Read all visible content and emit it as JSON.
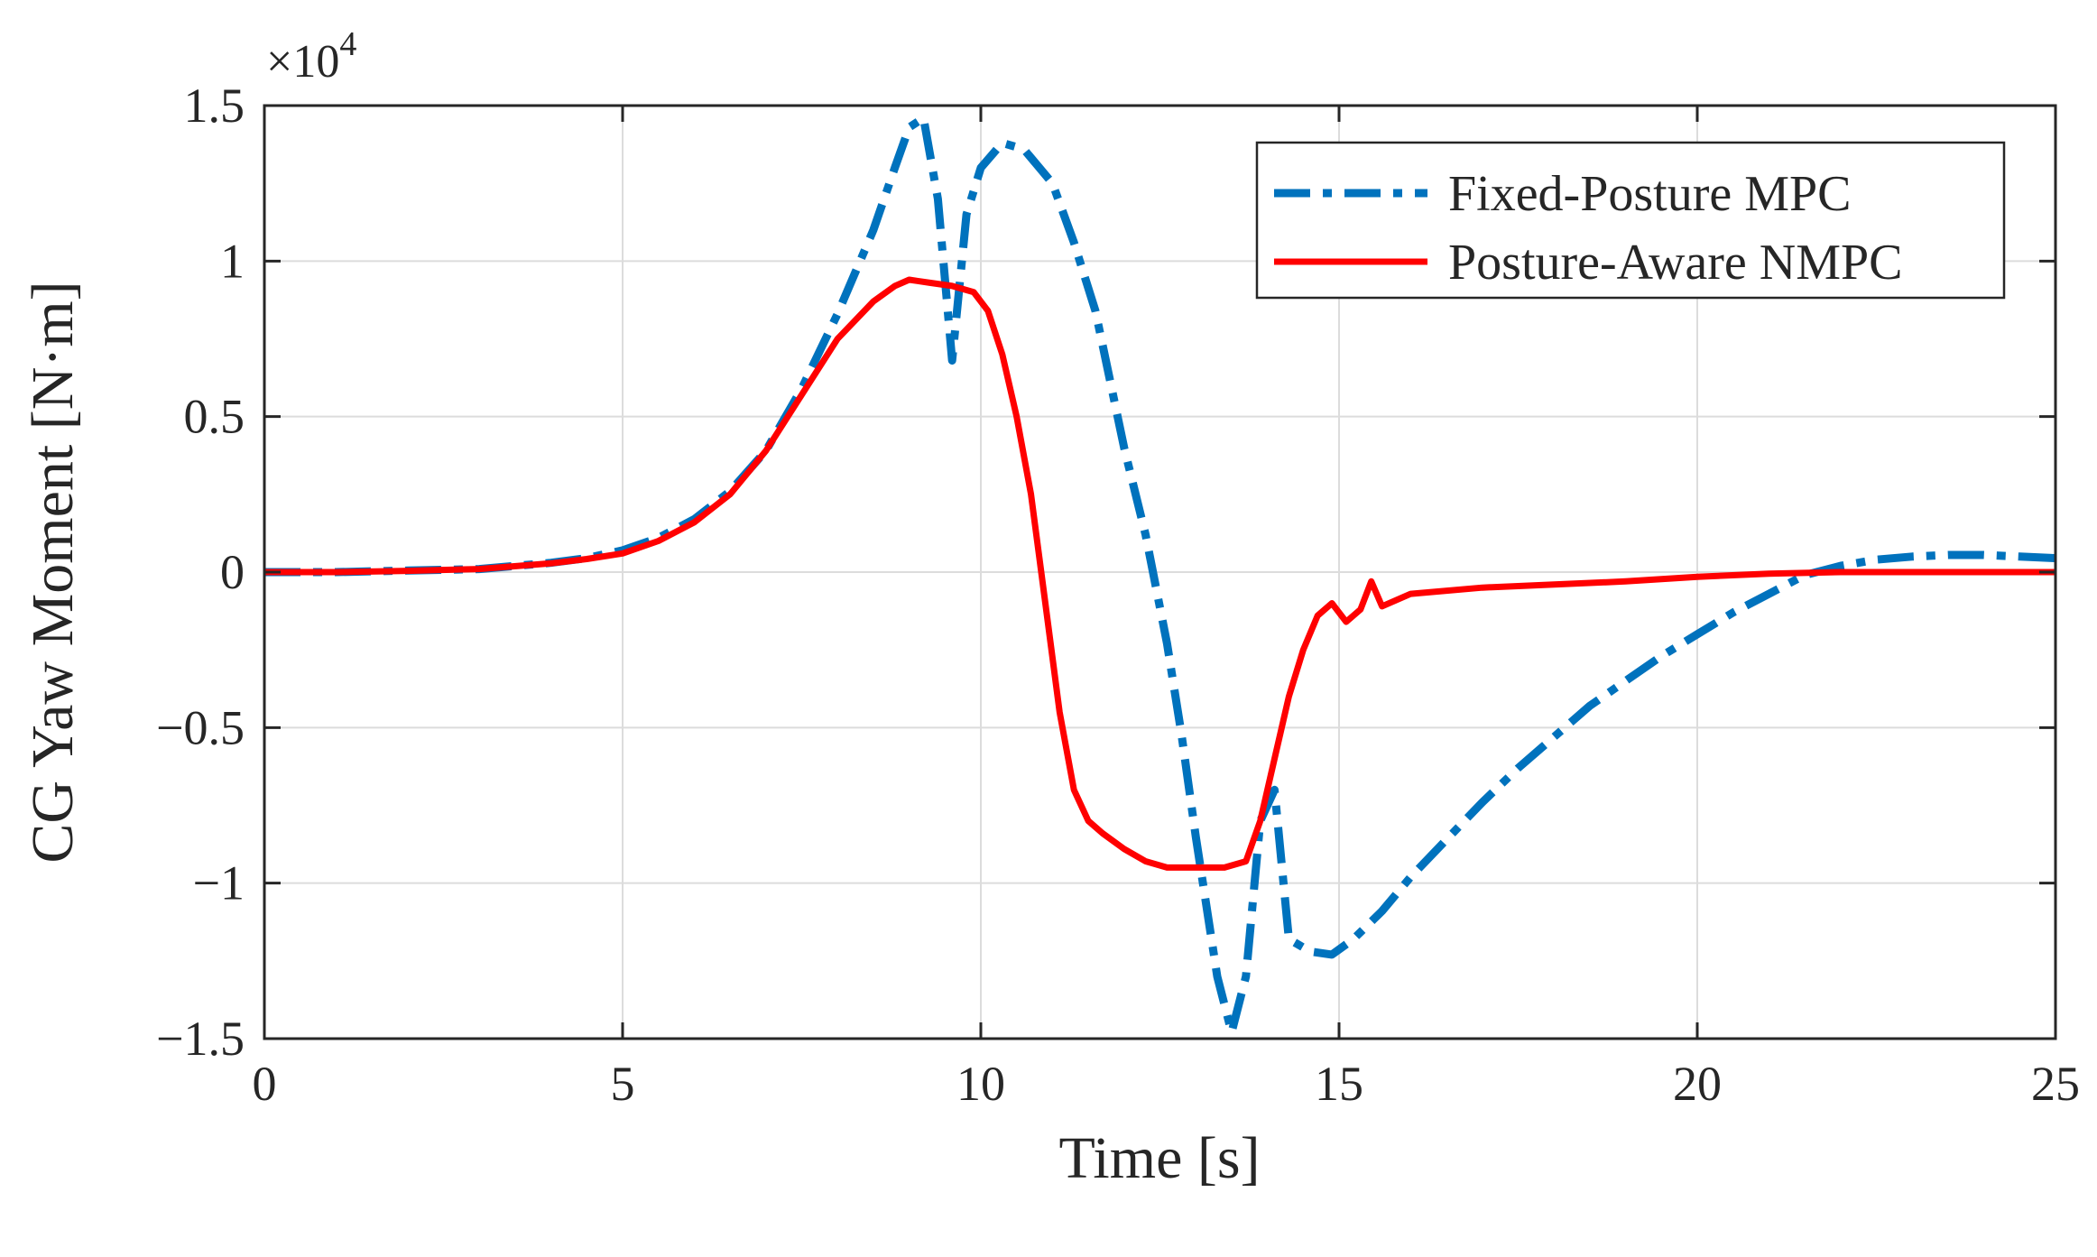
{
  "chart_data": {
    "type": "line",
    "title": "",
    "xlabel": "Time [s]",
    "ylabel": "CG Yaw Moment [N·m]",
    "xlim": [
      0,
      25
    ],
    "ylim": [
      -15000,
      15000
    ],
    "y_exponent_label": "×10",
    "y_exponent_power": "4",
    "xticks": [
      0,
      5,
      10,
      15,
      20,
      25
    ],
    "xtick_labels": [
      "0",
      "5",
      "10",
      "15",
      "20",
      "25"
    ],
    "yticks": [
      -15000,
      -10000,
      -5000,
      0,
      5000,
      10000,
      15000
    ],
    "ytick_labels": [
      "−1.5",
      "−1",
      "−0.5",
      "0",
      "0.5",
      "1",
      "1.5"
    ],
    "grid": true,
    "legend_position": "top-right",
    "series": [
      {
        "name": "Fixed-Posture MPC",
        "color": "#0072BD",
        "style": "dash-dot",
        "x": [
          0,
          1,
          2,
          3,
          4,
          4.5,
          5,
          5.5,
          6,
          6.5,
          7,
          7.5,
          8,
          8.5,
          8.8,
          9.0,
          9.2,
          9.4,
          9.6,
          9.8,
          10.0,
          10.3,
          10.6,
          11.0,
          11.3,
          11.6,
          12.0,
          12.3,
          12.6,
          12.8,
          13.0,
          13.3,
          13.5,
          13.7,
          13.9,
          14.1,
          14.3,
          14.6,
          14.9,
          15.2,
          15.6,
          16.0,
          16.5,
          17.0,
          17.5,
          18.0,
          18.5,
          19.0,
          19.5,
          20.0,
          20.5,
          21.0,
          21.5,
          22.0,
          22.5,
          23.0,
          23.5,
          24.0,
          24.5,
          25.0
        ],
        "values": [
          0,
          0,
          50,
          100,
          300,
          450,
          700,
          1100,
          1700,
          2600,
          3900,
          5900,
          8300,
          11000,
          13000,
          14300,
          14600,
          12000,
          6800,
          11500,
          13000,
          13800,
          13600,
          12500,
          10600,
          8400,
          4000,
          1200,
          -2300,
          -5200,
          -8500,
          -13000,
          -14800,
          -13000,
          -8000,
          -7000,
          -11800,
          -12200,
          -12300,
          -11800,
          -10900,
          -9800,
          -8600,
          -7400,
          -6300,
          -5300,
          -4300,
          -3500,
          -2700,
          -2000,
          -1300,
          -700,
          -100,
          200,
          400,
          500,
          550,
          550,
          500,
          450
        ]
      },
      {
        "name": "Posture-Aware NMPC",
        "color": "#FF0000",
        "style": "solid",
        "x": [
          0,
          1,
          2,
          3,
          4,
          4.5,
          5,
          5.5,
          6,
          6.5,
          7,
          7.5,
          8,
          8.5,
          8.8,
          9.0,
          9.3,
          9.6,
          9.9,
          10.1,
          10.3,
          10.5,
          10.7,
          10.9,
          11.1,
          11.3,
          11.5,
          11.7,
          12.0,
          12.3,
          12.6,
          13.0,
          13.4,
          13.7,
          13.9,
          14.1,
          14.3,
          14.5,
          14.7,
          14.9,
          15.1,
          15.3,
          15.45,
          15.6,
          16.0,
          17.0,
          18.0,
          19.0,
          20.0,
          21.0,
          22.0,
          23.0,
          24.0,
          25.0
        ],
        "values": [
          0,
          0,
          40,
          100,
          280,
          420,
          600,
          1000,
          1600,
          2500,
          3900,
          5700,
          7500,
          8700,
          9200,
          9400,
          9300,
          9200,
          9000,
          8400,
          7000,
          5000,
          2500,
          -1000,
          -4500,
          -7000,
          -8000,
          -8400,
          -8900,
          -9300,
          -9500,
          -9500,
          -9500,
          -9300,
          -8000,
          -6000,
          -4000,
          -2500,
          -1400,
          -1000,
          -1600,
          -1200,
          -300,
          -1100,
          -700,
          -500,
          -400,
          -300,
          -150,
          -50,
          0,
          0,
          0,
          0
        ]
      }
    ]
  }
}
